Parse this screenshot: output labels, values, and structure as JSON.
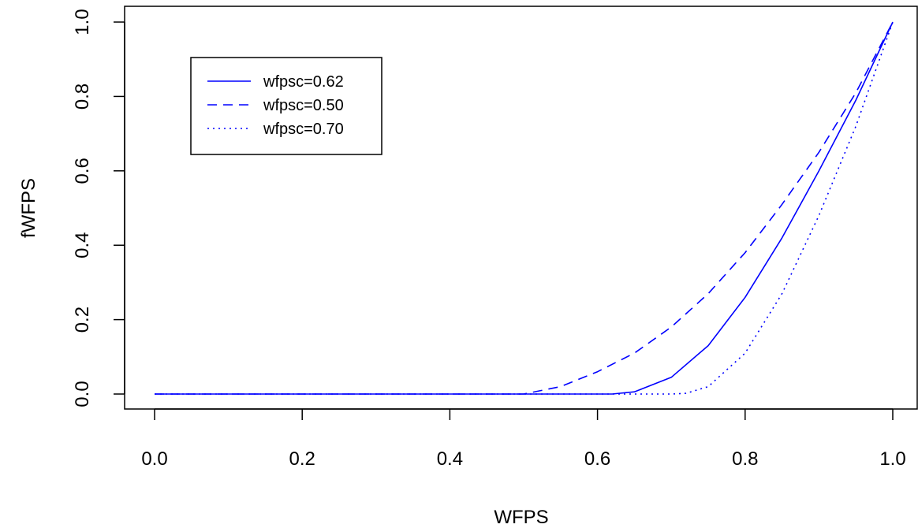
{
  "chart_data": {
    "type": "line",
    "title": "",
    "xlabel": "WFPS",
    "ylabel": "fWFPS",
    "xlim": [
      0,
      1
    ],
    "ylim": [
      0,
      1
    ],
    "xticks": [
      "0.0",
      "0.2",
      "0.4",
      "0.6",
      "0.8",
      "1.0"
    ],
    "yticks": [
      "0.0",
      "0.2",
      "0.4",
      "0.6",
      "0.8",
      "1.0"
    ],
    "grid": false,
    "legend_position": "top-left",
    "line_color": "#0000ff",
    "series": [
      {
        "name": "wfpsc=0.62",
        "style": "solid",
        "x": [
          0,
          0.62,
          0.65,
          0.7,
          0.75,
          0.8,
          0.85,
          0.9,
          0.95,
          1.0
        ],
        "y": [
          0,
          0,
          0.006,
          0.045,
          0.13,
          0.26,
          0.42,
          0.6,
          0.79,
          1.0
        ]
      },
      {
        "name": "wfpsc=0.50",
        "style": "dashed",
        "x": [
          0,
          0.5,
          0.55,
          0.6,
          0.65,
          0.7,
          0.75,
          0.8,
          0.85,
          0.9,
          0.95,
          1.0
        ],
        "y": [
          0,
          0,
          0.02,
          0.06,
          0.11,
          0.18,
          0.27,
          0.38,
          0.51,
          0.65,
          0.81,
          1.0
        ]
      },
      {
        "name": "wfpsc=0.70",
        "style": "dotted",
        "x": [
          0,
          0.7,
          0.72,
          0.75,
          0.8,
          0.85,
          0.9,
          0.95,
          1.0
        ],
        "y": [
          0,
          0,
          0.002,
          0.02,
          0.11,
          0.27,
          0.48,
          0.72,
          1.0
        ]
      }
    ]
  }
}
